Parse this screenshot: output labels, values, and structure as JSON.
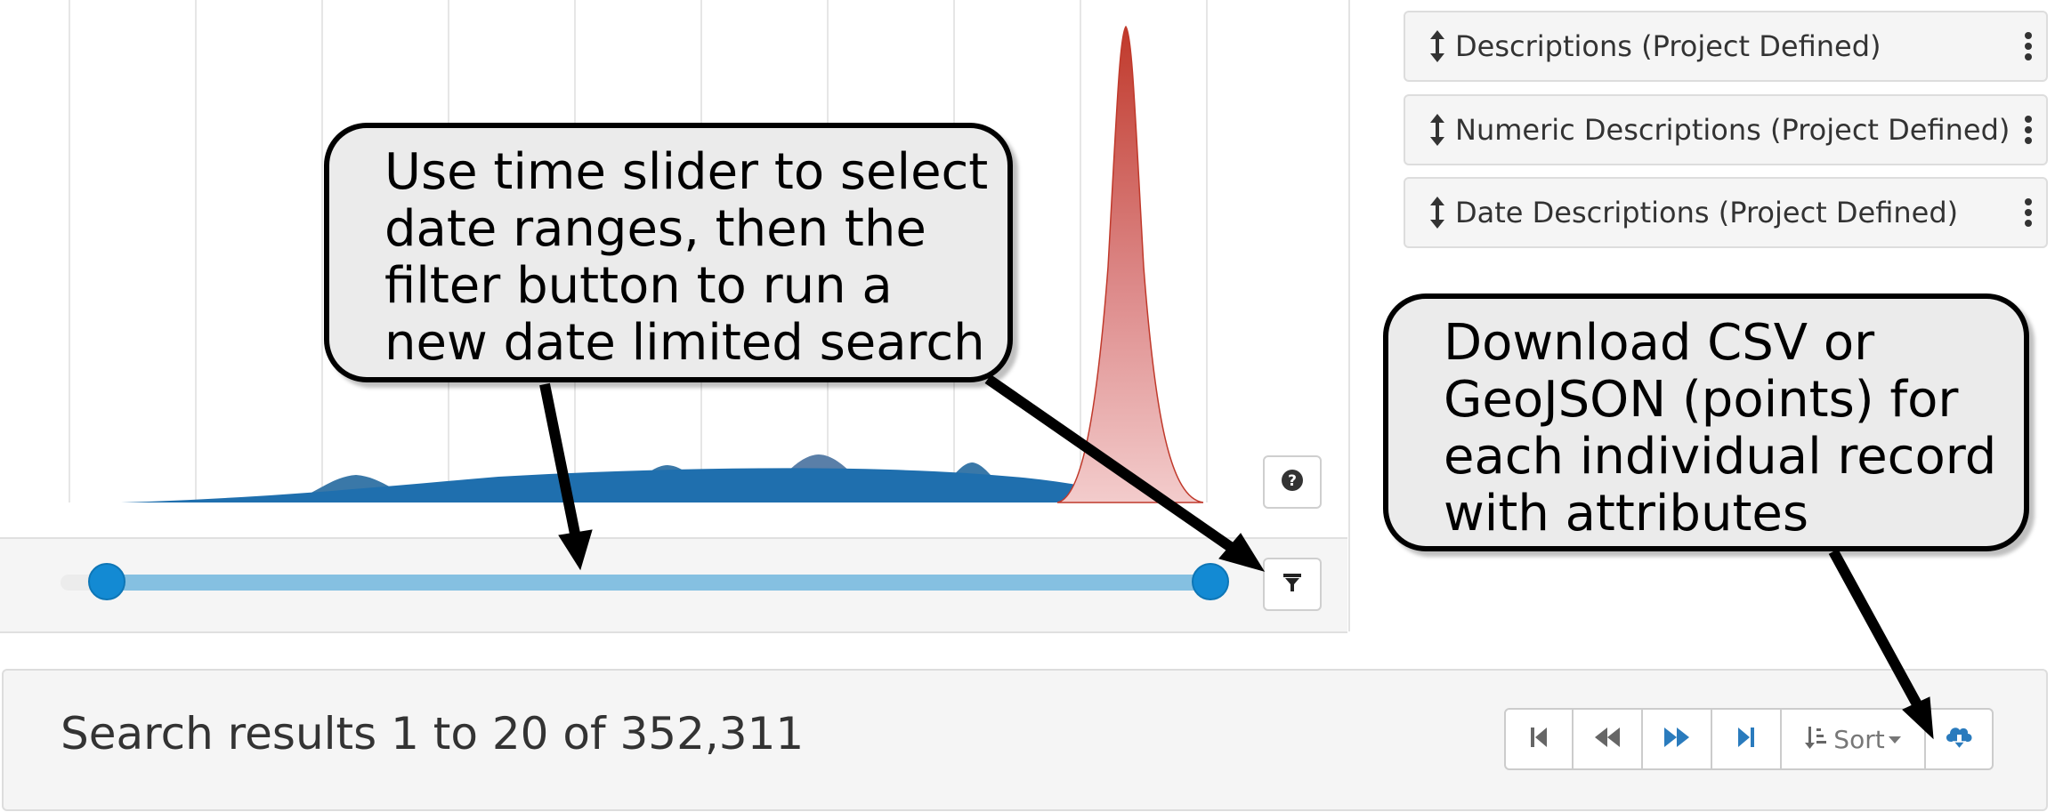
{
  "timeline": {
    "help_icon": "question-circle-icon",
    "filter_icon": "filter-icon",
    "range_start_fraction": 0.0,
    "range_end_fraction": 1.0,
    "colors": {
      "blue": "#1f6fae",
      "red": "#c0392b",
      "pink": "#e9a5a5",
      "mauve": "#b8a3b8",
      "slider": "#138ad3"
    }
  },
  "facets": [
    {
      "label": "Descriptions (Project Defined)",
      "icon": "sort-arrows-icon",
      "menu_icon": "kebab-icon"
    },
    {
      "label": "Numeric Descriptions (Project Defined)",
      "icon": "sort-arrows-icon",
      "menu_icon": "kebab-icon"
    },
    {
      "label": "Date Descriptions (Project Defined)",
      "icon": "sort-arrows-icon",
      "menu_icon": "kebab-icon"
    }
  ],
  "results": {
    "summary": "Search results 1 to 20 of 352,311"
  },
  "pager": {
    "first_icon": "step-backward-icon",
    "prev_icon": "backward-icon",
    "next_icon": "forward-icon",
    "last_icon": "step-forward-icon",
    "sort_label": "Sort",
    "download_icon": "cloud-download-icon"
  },
  "callouts": {
    "slider_lines": [
      "Use time slider to select",
      "date ranges, then the",
      "filter button to run a",
      "new date limited search"
    ],
    "download_lines": [
      "Download CSV or",
      "GeoJSON (points) for",
      "each individual record",
      "with attributes"
    ]
  }
}
